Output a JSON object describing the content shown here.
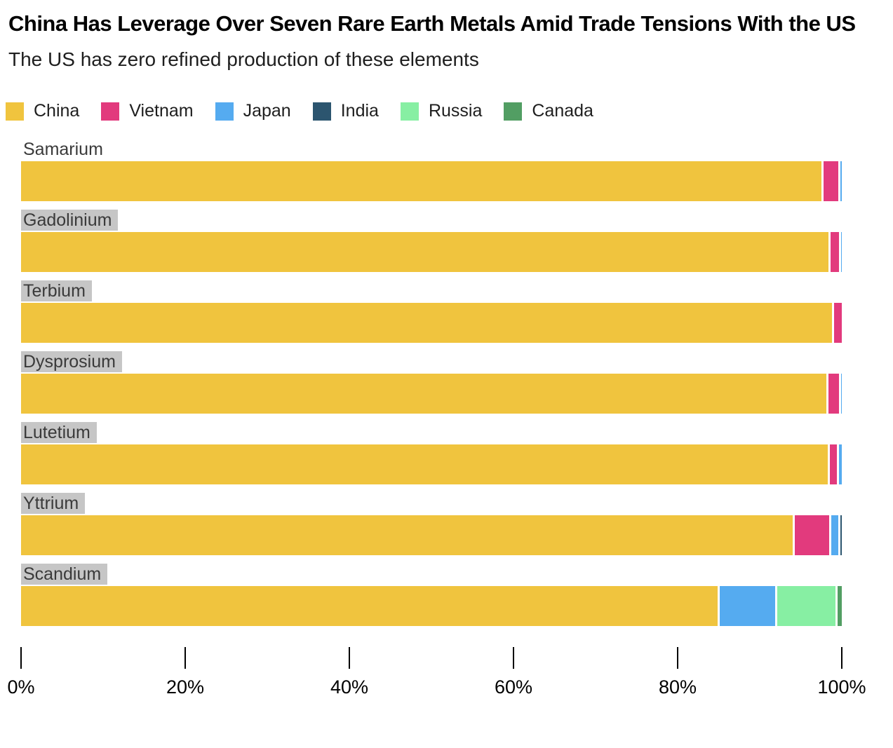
{
  "header": {
    "title": "China Has Leverage Over Seven Rare Earth Metals Amid Trade Tensions With the US",
    "subtitle": "The US has zero refined production of these elements"
  },
  "legend": [
    {
      "label": "China",
      "color": "#F0C43E"
    },
    {
      "label": "Vietnam",
      "color": "#E23A7D"
    },
    {
      "label": "Japan",
      "color": "#55ABF0"
    },
    {
      "label": "India",
      "color": "#2C556F"
    },
    {
      "label": "Russia",
      "color": "#87EFA3"
    },
    {
      "label": "Canada",
      "color": "#529E63"
    }
  ],
  "chart_data": {
    "type": "bar",
    "orientation": "horizontal",
    "stacked": true,
    "unit": "percent",
    "title": "China Has Leverage Over Seven Rare Earth Metals Amid Trade Tensions With the US",
    "subtitle": "The US has zero refined production of these elements",
    "xlabel": "",
    "ylabel": "",
    "xlim": [
      0,
      100
    ],
    "x_ticks": [
      "0%",
      "20%",
      "40%",
      "60%",
      "80%",
      "100%"
    ],
    "grid": false,
    "legend_position": "top",
    "categories": [
      "Samarium",
      "Gadolinium",
      "Terbium",
      "Dysprosium",
      "Lutetium",
      "Yttrium",
      "Scandium"
    ],
    "category_label_highlighted": [
      false,
      true,
      true,
      true,
      true,
      true,
      true
    ],
    "series": [
      {
        "name": "China",
        "color": "#F0C43E",
        "values": [
          97.5,
          98.4,
          98.8,
          98.2,
          98.3,
          94.0,
          84.9
        ]
      },
      {
        "name": "Vietnam",
        "color": "#E23A7D",
        "values": [
          2.1,
          1.3,
          1.2,
          1.5,
          1.1,
          4.5,
          0
        ]
      },
      {
        "name": "Japan",
        "color": "#55ABF0",
        "values": [
          0.4,
          0.3,
          0,
          0.3,
          0.6,
          1.1,
          7.0
        ]
      },
      {
        "name": "India",
        "color": "#2C556F",
        "values": [
          0,
          0,
          0,
          0,
          0,
          0.4,
          0
        ]
      },
      {
        "name": "Russia",
        "color": "#87EFA3",
        "values": [
          0,
          0,
          0,
          0,
          0,
          0,
          7.3
        ]
      },
      {
        "name": "Canada",
        "color": "#529E63",
        "values": [
          0,
          0,
          0,
          0,
          0,
          0,
          0.8
        ]
      }
    ]
  }
}
